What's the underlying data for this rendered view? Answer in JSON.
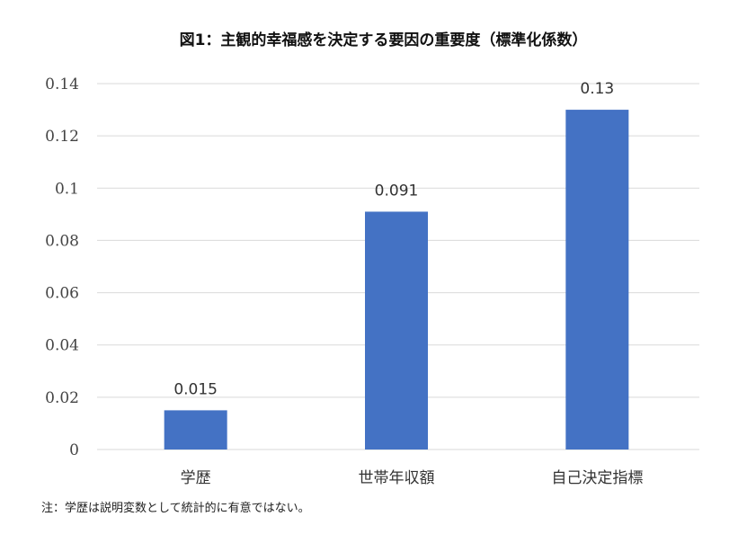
{
  "note": "注：学歴は説明変数として統計的に有意ではない。",
  "chart_data": {
    "type": "bar",
    "title": "図1：主観的幸福感を決定する要因の重要度（標準化係数）",
    "categories": [
      "学歴",
      "世帯年収額",
      "自己決定指標"
    ],
    "values": [
      0.015,
      0.091,
      0.13
    ],
    "data_labels": [
      "0.015",
      "0.091",
      "0.13"
    ],
    "ylim": [
      0,
      0.14
    ],
    "yticks": [
      0,
      0.02,
      0.04,
      0.06,
      0.08,
      0.1,
      0.12,
      0.14
    ],
    "ytick_labels": [
      "0",
      "0.02",
      "0.04",
      "0.06",
      "0.08",
      "0.1",
      "0.12",
      "0.14"
    ],
    "grid": true,
    "legend": "none",
    "bar_color": "#4472c4",
    "grid_color": "#d9d9d9"
  }
}
